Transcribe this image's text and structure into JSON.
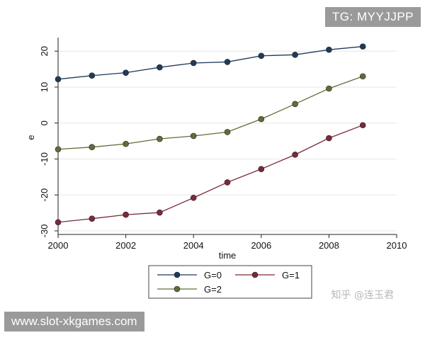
{
  "overlays": {
    "tag_text": "TG: MYYJJPP",
    "url_text": "www.slot-xkgames.com",
    "watermark_text": "知乎 @连玉君"
  },
  "chart_data": {
    "type": "line",
    "title": "",
    "xlabel": "time",
    "ylabel": "e",
    "xlim": [
      2000,
      2010
    ],
    "ylim": [
      -31,
      23
    ],
    "xticks": [
      2000,
      2002,
      2004,
      2006,
      2008,
      2010
    ],
    "yticks": [
      20,
      10,
      0,
      -10,
      -20,
      -30
    ],
    "ytick_labels": [
      "20",
      "10",
      "0",
      "-10",
      "-20",
      "-30"
    ],
    "grid": true,
    "legend_position": "bottom",
    "x": [
      2000,
      2001,
      2002,
      2003,
      2004,
      2005,
      2006,
      2007,
      2008,
      2009
    ],
    "series": [
      {
        "name": "G=0",
        "color": "#1f3a5a",
        "values": [
          12.2,
          13.2,
          14.0,
          15.5,
          16.7,
          17.0,
          18.7,
          19.0,
          20.4,
          21.3
        ]
      },
      {
        "name": "G=1",
        "color": "#7a2a3a",
        "values": [
          -27.6,
          -26.6,
          -25.5,
          -24.9,
          -20.8,
          -16.5,
          -12.8,
          -8.8,
          -4.2,
          -0.6
        ]
      },
      {
        "name": "G=2",
        "color": "#5e6e38",
        "values": [
          -7.3,
          -6.7,
          -5.8,
          -4.4,
          -3.6,
          -2.5,
          1.1,
          5.3,
          9.6,
          13.0
        ]
      }
    ]
  }
}
